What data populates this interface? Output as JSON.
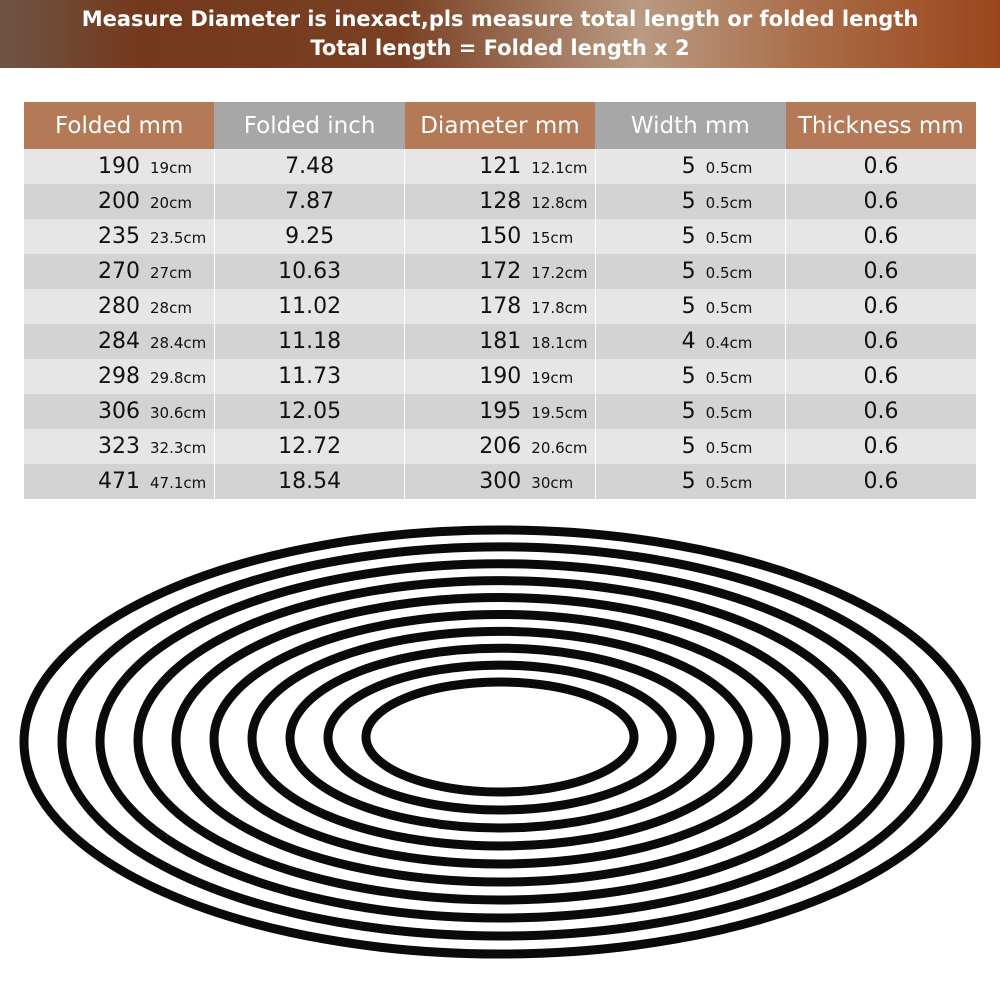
{
  "banner": {
    "line1": "Measure Diameter is inexact,pls measure total length or folded length",
    "line2": "Total length = Folded length x 2"
  },
  "table": {
    "headers": [
      "Folded mm",
      "Folded inch",
      "Diameter mm",
      "Width mm",
      "Thickness mm"
    ],
    "rows": [
      {
        "folded_mm": "190",
        "folded_cm": "19cm",
        "folded_inch": "7.48",
        "diameter_mm": "121",
        "diameter_cm": "12.1cm",
        "width_mm": "5",
        "width_cm": "0.5cm",
        "thickness_mm": "0.6"
      },
      {
        "folded_mm": "200",
        "folded_cm": "20cm",
        "folded_inch": "7.87",
        "diameter_mm": "128",
        "diameter_cm": "12.8cm",
        "width_mm": "5",
        "width_cm": "0.5cm",
        "thickness_mm": "0.6"
      },
      {
        "folded_mm": "235",
        "folded_cm": "23.5cm",
        "folded_inch": "9.25",
        "diameter_mm": "150",
        "diameter_cm": "15cm",
        "width_mm": "5",
        "width_cm": "0.5cm",
        "thickness_mm": "0.6"
      },
      {
        "folded_mm": "270",
        "folded_cm": "27cm",
        "folded_inch": "10.63",
        "diameter_mm": "172",
        "diameter_cm": "17.2cm",
        "width_mm": "5",
        "width_cm": "0.5cm",
        "thickness_mm": "0.6"
      },
      {
        "folded_mm": "280",
        "folded_cm": "28cm",
        "folded_inch": "11.02",
        "diameter_mm": "178",
        "diameter_cm": "17.8cm",
        "width_mm": "5",
        "width_cm": "0.5cm",
        "thickness_mm": "0.6"
      },
      {
        "folded_mm": "284",
        "folded_cm": "28.4cm",
        "folded_inch": "11.18",
        "diameter_mm": "181",
        "diameter_cm": "18.1cm",
        "width_mm": "4",
        "width_cm": "0.4cm",
        "thickness_mm": "0.6"
      },
      {
        "folded_mm": "298",
        "folded_cm": "29.8cm",
        "folded_inch": "11.73",
        "diameter_mm": "190",
        "diameter_cm": "19cm",
        "width_mm": "5",
        "width_cm": "0.5cm",
        "thickness_mm": "0.6"
      },
      {
        "folded_mm": "306",
        "folded_cm": "30.6cm",
        "folded_inch": "12.05",
        "diameter_mm": "195",
        "diameter_cm": "19.5cm",
        "width_mm": "5",
        "width_cm": "0.5cm",
        "thickness_mm": "0.6"
      },
      {
        "folded_mm": "323",
        "folded_cm": "32.3cm",
        "folded_inch": "12.72",
        "diameter_mm": "206",
        "diameter_cm": "20.6cm",
        "width_mm": "5",
        "width_cm": "0.5cm",
        "thickness_mm": "0.6"
      },
      {
        "folded_mm": "471",
        "folded_cm": "47.1cm",
        "folded_inch": "18.54",
        "diameter_mm": "300",
        "diameter_cm": "30cm",
        "width_mm": "5",
        "width_cm": "0.5cm",
        "thickness_mm": "0.6"
      }
    ]
  },
  "image": {
    "subject": "black rubber belt rings",
    "ring_count": 10,
    "colors": {
      "belt": "#0a0a0a",
      "header_brown": "#b47a58",
      "header_gray": "#a7a7a7"
    }
  }
}
